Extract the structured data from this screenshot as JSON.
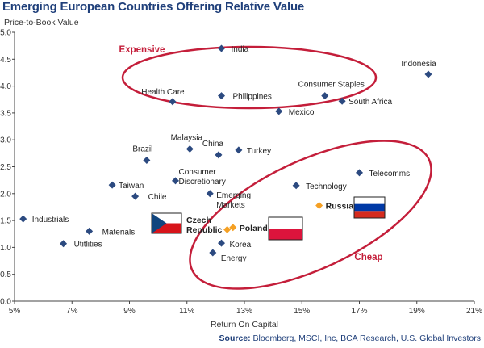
{
  "chart_data": {
    "type": "scatter",
    "title": "Emerging European Countries Offering Relative Value",
    "ylabel": "Price-to-Book Value",
    "xlabel": "Return On Capital",
    "xlim": [
      5,
      21
    ],
    "ylim": [
      0.0,
      5.0
    ],
    "x_ticks": [
      "5%",
      "7%",
      "9%",
      "11%",
      "13%",
      "15%",
      "17%",
      "19%",
      "21%"
    ],
    "y_ticks": [
      "0.0",
      "0.5",
      "1.0",
      "1.5",
      "2.0",
      "2.5",
      "3.0",
      "3.5",
      "4.0",
      "4.5",
      "5.0"
    ],
    "grid": false,
    "series": [
      {
        "color": "#2c4a80",
        "marker": "diamond",
        "points": [
          {
            "label": "India",
            "x": 12.2,
            "y": 4.7
          },
          {
            "label": "Indonesia",
            "x": 19.4,
            "y": 4.22
          },
          {
            "label": "Health Care",
            "x": 10.5,
            "y": 3.71
          },
          {
            "label": "Philippines",
            "x": 12.2,
            "y": 3.82
          },
          {
            "label": "Consumer Staples",
            "x": 15.8,
            "y": 3.82
          },
          {
            "label": "South Africa",
            "x": 16.4,
            "y": 3.72
          },
          {
            "label": "Mexico",
            "x": 14.2,
            "y": 3.53
          },
          {
            "label": "Malaysia",
            "x": 11.1,
            "y": 2.83
          },
          {
            "label": "China",
            "x": 12.1,
            "y": 2.72
          },
          {
            "label": "Turkey",
            "x": 12.8,
            "y": 2.81
          },
          {
            "label": "Brazil",
            "x": 9.6,
            "y": 2.62
          },
          {
            "label": "Consumer Discretionary",
            "x": 10.6,
            "y": 2.24
          },
          {
            "label": "Taiwan",
            "x": 8.4,
            "y": 2.16
          },
          {
            "label": "Chile",
            "x": 9.2,
            "y": 1.95
          },
          {
            "label": "Emerging Markets",
            "x": 11.8,
            "y": 2.0
          },
          {
            "label": "Telecomms",
            "x": 17.0,
            "y": 2.39
          },
          {
            "label": "Technology",
            "x": 14.8,
            "y": 2.15
          },
          {
            "label": "Industrials",
            "x": 5.3,
            "y": 1.53
          },
          {
            "label": "Materials",
            "x": 7.6,
            "y": 1.3
          },
          {
            "label": "Utitlities",
            "x": 6.7,
            "y": 1.07
          },
          {
            "label": "Korea",
            "x": 12.2,
            "y": 1.08
          },
          {
            "label": "Energy",
            "x": 11.9,
            "y": 0.9
          }
        ]
      },
      {
        "color": "#f5a023",
        "marker": "diamond",
        "points": [
          {
            "label": "Czech Republic",
            "x": 12.4,
            "y": 1.33
          },
          {
            "label": "Poland",
            "x": 12.6,
            "y": 1.37
          },
          {
            "label": "Russia",
            "x": 15.6,
            "y": 1.78
          }
        ]
      }
    ],
    "annotations": [
      "Expensive",
      "Cheap"
    ]
  },
  "source": {
    "prefix": "Source:",
    "text": " Bloomberg, MSCI, Inc, BCA Research, U.S. Global Investors"
  },
  "colors": {
    "series_blue": "#2c4a80",
    "highlight_orange": "#f5a023",
    "ellipse_red": "#c41e3a",
    "title_blue": "#1f3f7a"
  }
}
